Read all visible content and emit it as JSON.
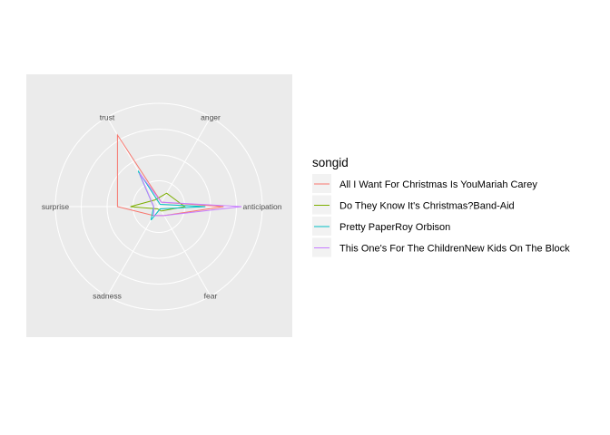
{
  "chart_data": {
    "type": "radar",
    "axes": [
      "anticipation",
      "anger",
      "trust",
      "surprise",
      "sadness",
      "fear"
    ],
    "rmax": 4,
    "grid_rings": [
      1,
      2,
      3,
      4
    ],
    "legend_title": "songid",
    "legend_position": "right",
    "grid": true,
    "series": [
      {
        "name": "All I Want For Christmas Is YouMariah Carey",
        "color": "#F8766D",
        "values": {
          "anticipation": 2.5,
          "anger": 0.2,
          "trust": 3.2,
          "surprise": 1.6,
          "sadness": 0.4,
          "fear": 0.4
        }
      },
      {
        "name": "Do They Know It's Christmas?Band-Aid",
        "color": "#7CAE00",
        "values": {
          "anticipation": 1.0,
          "anger": 0.6,
          "trust": 0.3,
          "surprise": 1.1,
          "sadness": 0.1,
          "fear": 0.2
        }
      },
      {
        "name": "Pretty PaperRoy Orbison",
        "color": "#00BFC4",
        "values": {
          "anticipation": 1.8,
          "anger": 0.1,
          "trust": 1.6,
          "surprise": 0.2,
          "sadness": 0.6,
          "fear": 0.1
        }
      },
      {
        "name": "This One's For The ChildrenNew Kids On The Block",
        "color": "#C77CFF",
        "values": {
          "anticipation": 3.2,
          "anger": 0.2,
          "trust": 1.5,
          "surprise": 0.2,
          "sadness": 0.4,
          "fear": 0.4
        }
      }
    ]
  }
}
